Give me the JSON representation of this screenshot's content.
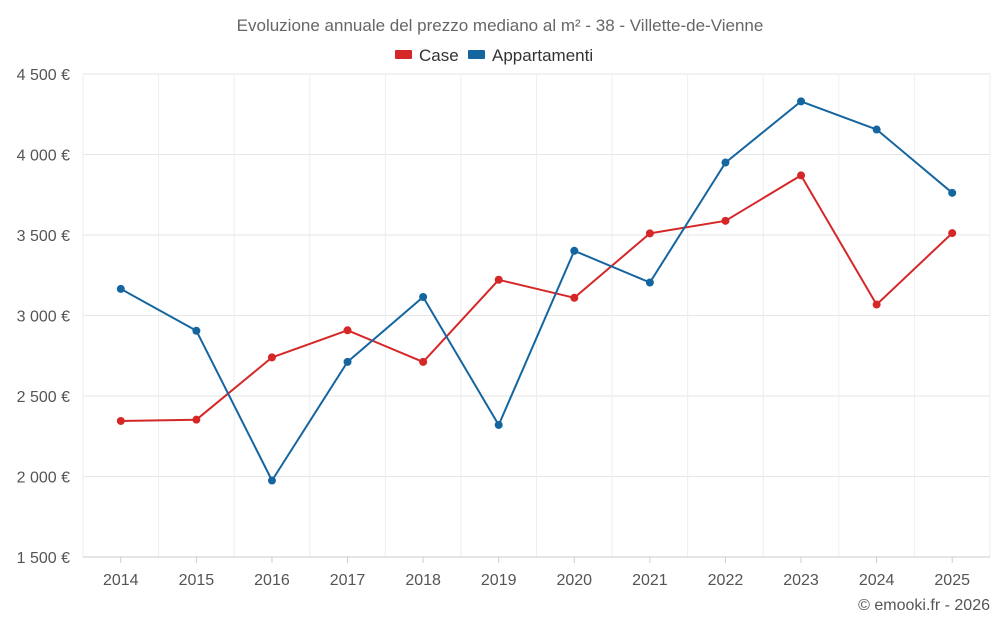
{
  "chart_data": {
    "type": "line",
    "title": "Evoluzione annuale del prezzo mediano al m² - 38 - Villette-de-Vienne",
    "xlabel": "",
    "ylabel": "",
    "categories": [
      "2014",
      "2015",
      "2016",
      "2017",
      "2018",
      "2019",
      "2020",
      "2021",
      "2022",
      "2023",
      "2024",
      "2025"
    ],
    "ylim": [
      1500,
      4500
    ],
    "yticks": [
      1500,
      2000,
      2500,
      3000,
      3500,
      4000,
      4500
    ],
    "ytick_labels": [
      "1 500 €",
      "2 000 €",
      "2 500 €",
      "3 000 €",
      "3 500 €",
      "4 000 €",
      "4 500 €"
    ],
    "grid": true,
    "legend_position": "top-center",
    "series": [
      {
        "name": "Case",
        "color": "#d62728",
        "values": [
          2345,
          2353,
          2740,
          2908,
          2712,
          3222,
          3110,
          3510,
          3588,
          3870,
          3068,
          3512
        ]
      },
      {
        "name": "Appartamenti",
        "color": "#1565a0",
        "values": [
          3165,
          2905,
          1975,
          2712,
          3115,
          2320,
          3402,
          3205,
          3950,
          4330,
          4155,
          3762
        ]
      }
    ],
    "credit": "© emooki.fr - 2026"
  }
}
